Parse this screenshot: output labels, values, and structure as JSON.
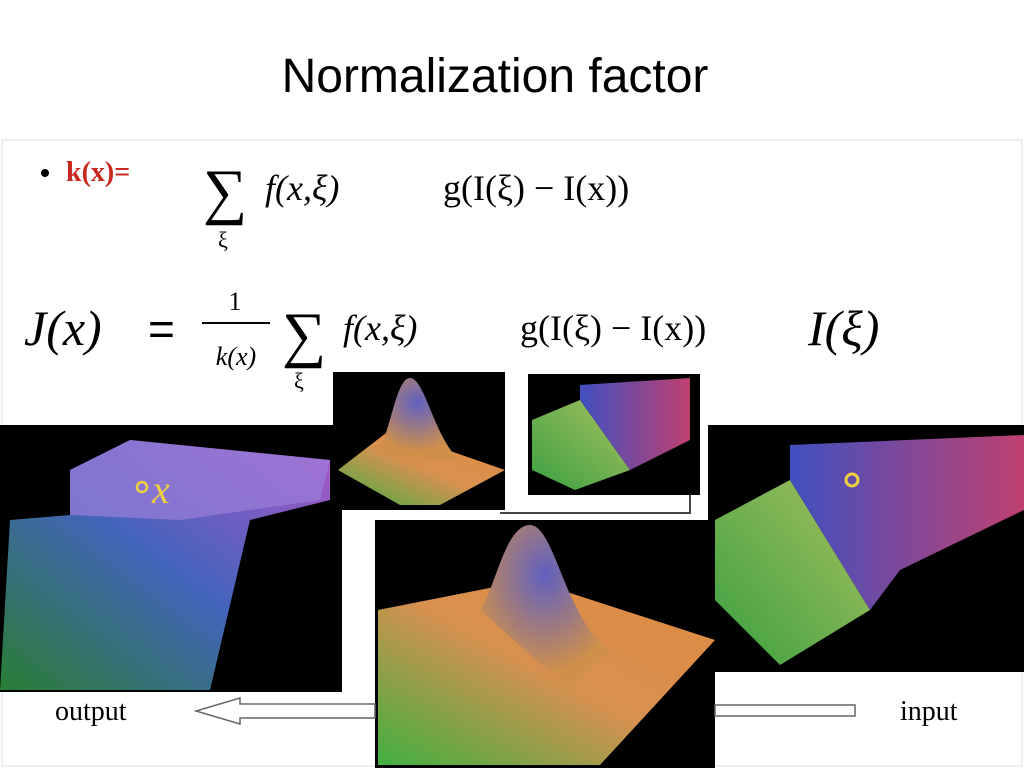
{
  "title": "Normalization factor",
  "bullet": {
    "label": "k(x)=",
    "sum": "∑",
    "sub": "ξ",
    "spatial": "f(x,ξ)",
    "range": "g(I(ξ) − I(x))"
  },
  "equation": {
    "lhs": "J(x)",
    "equals": "=",
    "numerator": "1",
    "denominator": "k(x)",
    "sum": "∑",
    "sub": "ξ",
    "spatial": "f(x,ξ)",
    "range": "g(I(ξ) − I(x))",
    "input": "I(ξ)"
  },
  "images": {
    "output_marker": "x"
  },
  "labels": {
    "output": "output",
    "input": "input"
  }
}
